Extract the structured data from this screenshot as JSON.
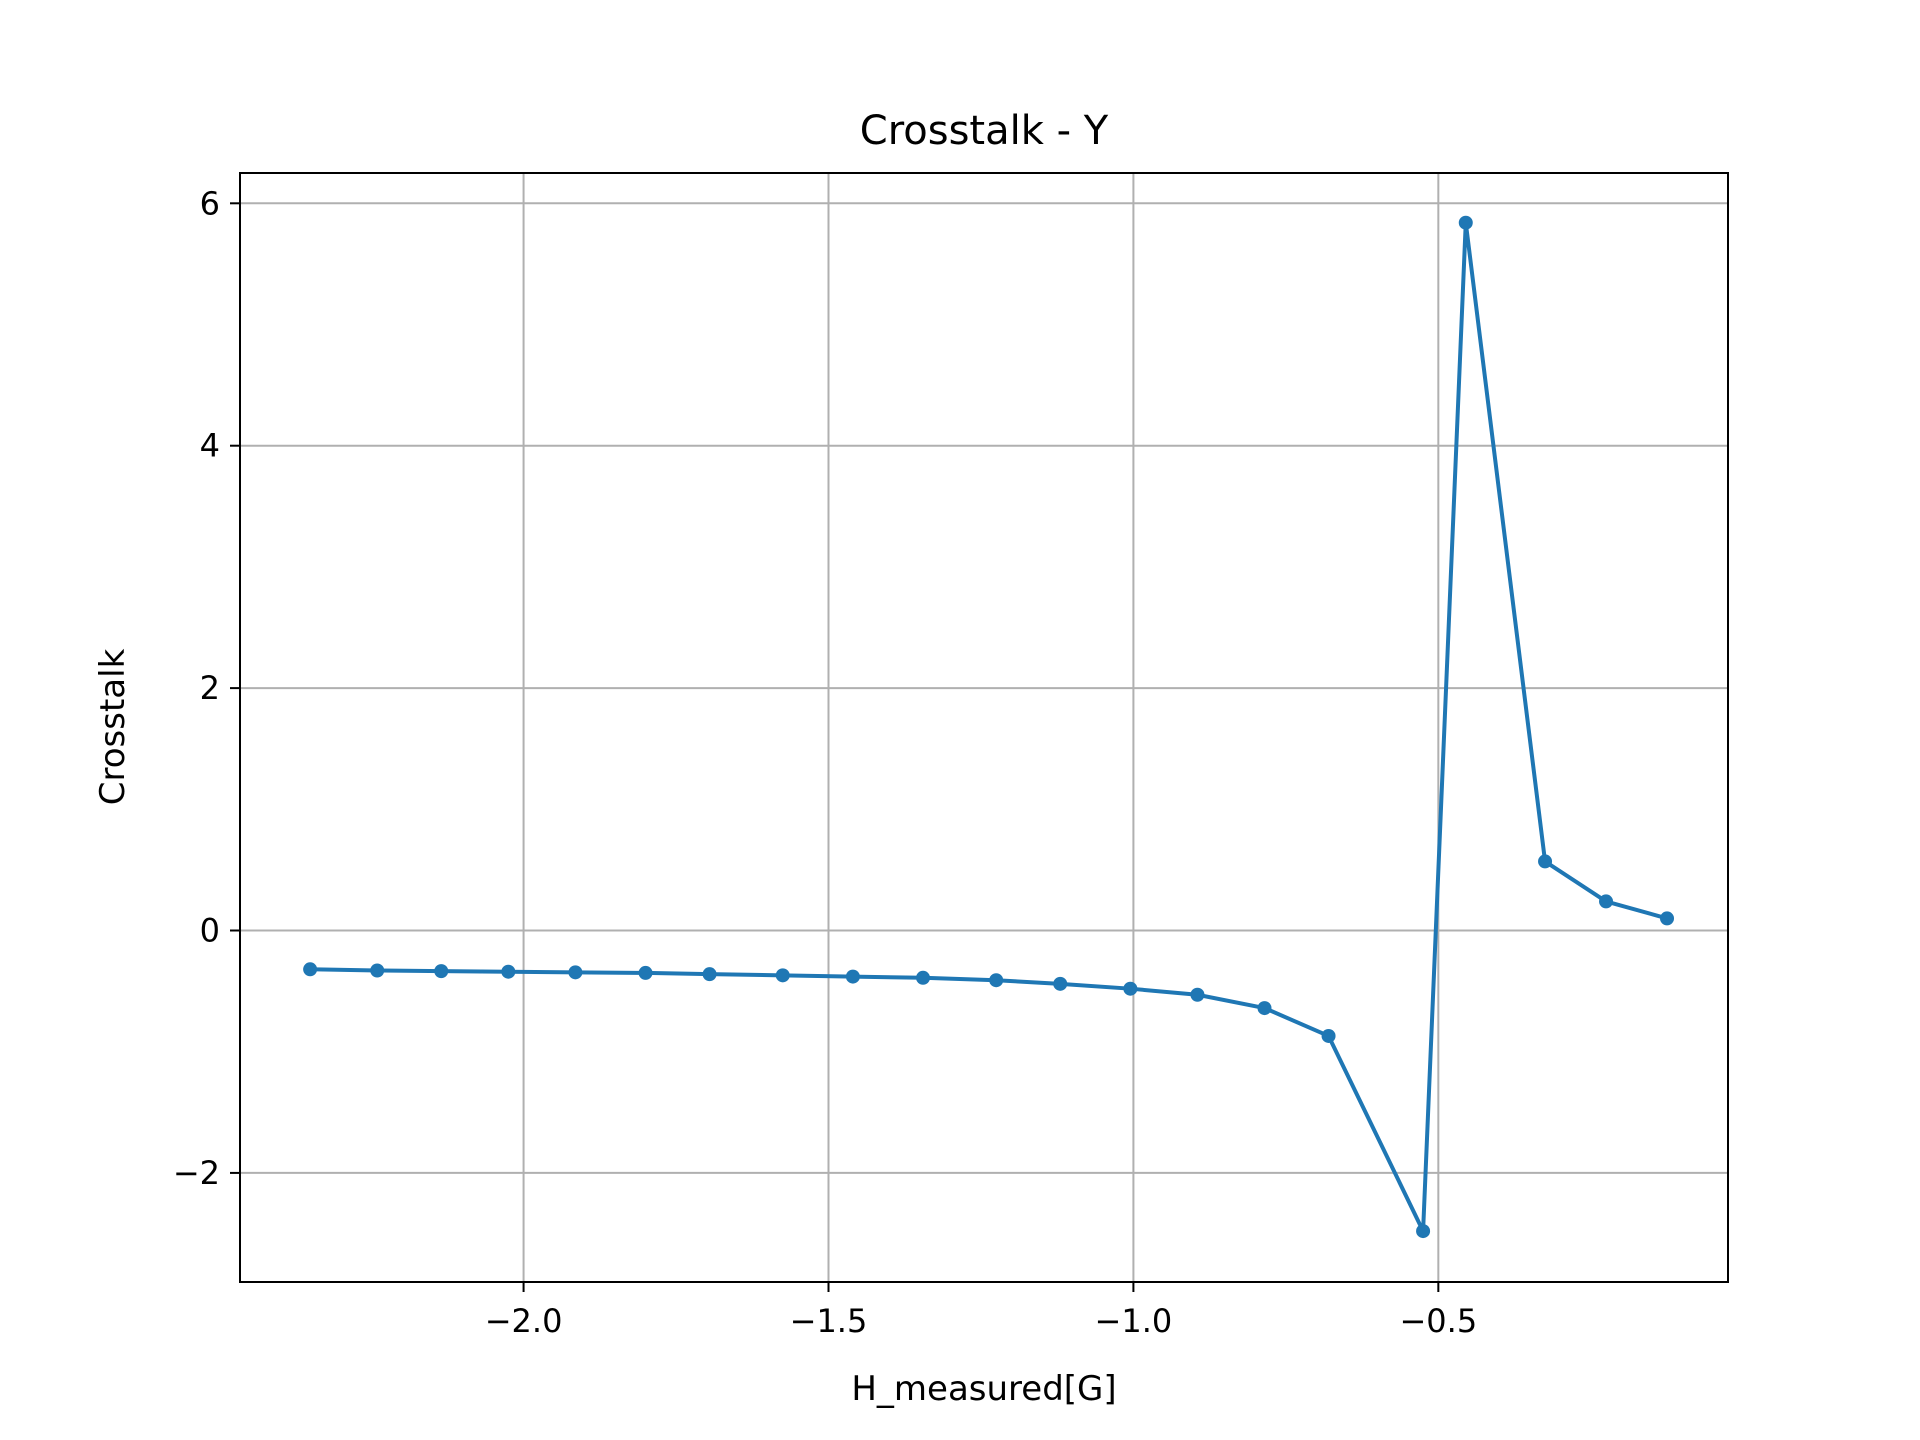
{
  "chart_data": {
    "type": "line",
    "title": "Crosstalk - Y",
    "xlabel": "H_measured[G]",
    "ylabel": "Crosstalk",
    "xlim": [
      -2.465,
      -0.025
    ],
    "ylim": [
      -2.9,
      6.25
    ],
    "x_ticks": [
      -2.0,
      -1.5,
      -1.0,
      -0.5
    ],
    "x_tick_labels": [
      "−2.0",
      "−1.5",
      "−1.0",
      "−0.5"
    ],
    "y_ticks": [
      -2,
      0,
      2,
      4,
      6
    ],
    "y_tick_labels": [
      "−2",
      "0",
      "2",
      "4",
      "6"
    ],
    "grid": true,
    "series": [
      {
        "color": "#1f77b4",
        "marker": "circle",
        "x": [
          -2.35,
          -2.24,
          -2.135,
          -2.025,
          -1.915,
          -1.8,
          -1.695,
          -1.575,
          -1.46,
          -1.345,
          -1.225,
          -1.12,
          -1.005,
          -0.895,
          -0.785,
          -0.68,
          -0.525,
          -0.455,
          -0.325,
          -0.225,
          -0.125
        ],
        "y": [
          -0.32,
          -0.33,
          -0.335,
          -0.34,
          -0.345,
          -0.35,
          -0.36,
          -0.37,
          -0.38,
          -0.39,
          -0.41,
          -0.44,
          -0.48,
          -0.53,
          -0.64,
          -0.87,
          -2.48,
          5.84,
          0.57,
          0.24,
          0.1
        ]
      }
    ]
  }
}
